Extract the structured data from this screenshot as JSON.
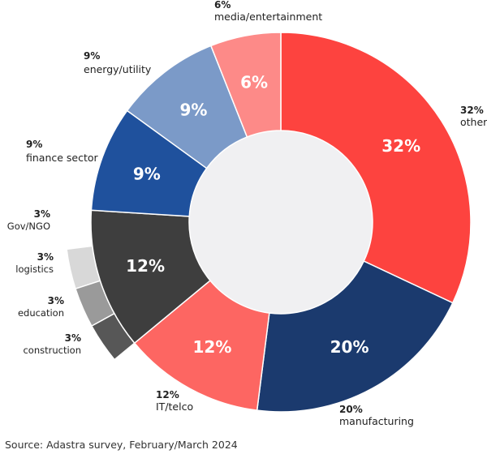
{
  "chart_data": {
    "type": "pie",
    "variant": "donut",
    "title": "",
    "slices": [
      {
        "label": "other",
        "value": 32,
        "pct_label": "32%",
        "color": "#fd433f"
      },
      {
        "label": "manufacturing",
        "value": 20,
        "pct_label": "20%",
        "color": "#1b3a6e"
      },
      {
        "label": "IT/telco",
        "value": 12,
        "pct_label": "12%",
        "color": "#fd6662"
      },
      {
        "label": "construction",
        "value": 3,
        "pct_label": "3%",
        "color": "#575757",
        "parent": "12% group"
      },
      {
        "label": "education",
        "value": 3,
        "pct_label": "3%",
        "color": "#9a9a9a",
        "parent": "12% group"
      },
      {
        "label": "logistics",
        "value": 3,
        "pct_label": "3%",
        "color": "#d8d8d8",
        "parent": "12% group"
      },
      {
        "label": "Gov/NGO",
        "value": 3,
        "pct_label": "3%",
        "color": "#ffffff",
        "parent": "12% group"
      },
      {
        "label": "finance sector",
        "value": 9,
        "pct_label": "9%",
        "color": "#1f519d"
      },
      {
        "label": "energy/utility",
        "value": 9,
        "pct_label": "9%",
        "color": "#7b9ac8"
      },
      {
        "label": "media/entertainment",
        "value": 6,
        "pct_label": "6%",
        "color": "#fd8a88"
      }
    ],
    "group": {
      "value": 12,
      "pct_label": "12%",
      "color": "#3e3e3e"
    },
    "center_color": "#f0f0f2"
  },
  "source": "Source: Adastra survey, February/March 2024"
}
